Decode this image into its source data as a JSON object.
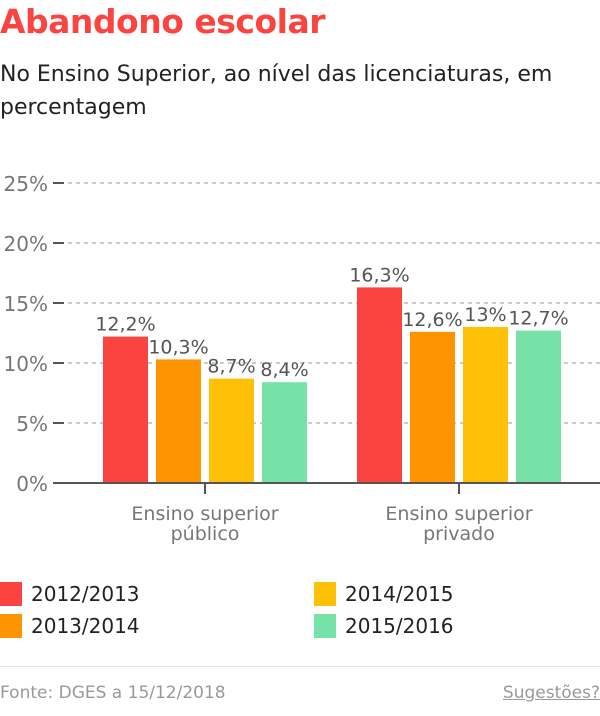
{
  "title": "Abandono escolar",
  "subtitle": "No Ensino Superior, ao nível das licenciaturas, em percentagem",
  "chart_data": {
    "type": "bar",
    "categories": [
      [
        "Ensino superior",
        "público"
      ],
      [
        "Ensino superior",
        "privado"
      ]
    ],
    "series": [
      {
        "name": "2012/2013",
        "color": "#fb4440",
        "values": [
          12.2,
          16.3
        ],
        "labels": [
          "12,2%",
          "16,3%"
        ]
      },
      {
        "name": "2013/2014",
        "color": "#fe9400",
        "values": [
          10.3,
          12.6
        ],
        "labels": [
          "10,3%",
          "12,6%"
        ]
      },
      {
        "name": "2014/2015",
        "color": "#fec108",
        "values": [
          8.7,
          13
        ],
        "labels": [
          "8,7%",
          "13%"
        ]
      },
      {
        "name": "2015/2016",
        "color": "#77e2a8",
        "values": [
          8.4,
          12.7
        ],
        "labels": [
          "8,4%",
          "12,7%"
        ]
      }
    ],
    "yticks": [
      0,
      5,
      10,
      15,
      20,
      25
    ],
    "ytick_labels": [
      "0%",
      "5%",
      "10%",
      "15%",
      "20%",
      "25%"
    ],
    "ylim": [
      0,
      25
    ],
    "grid": true,
    "legend_position": "bottom"
  },
  "footer": {
    "source": "Fonte: DGES a 15/12/2018",
    "suggestions": "Sugestões?"
  }
}
